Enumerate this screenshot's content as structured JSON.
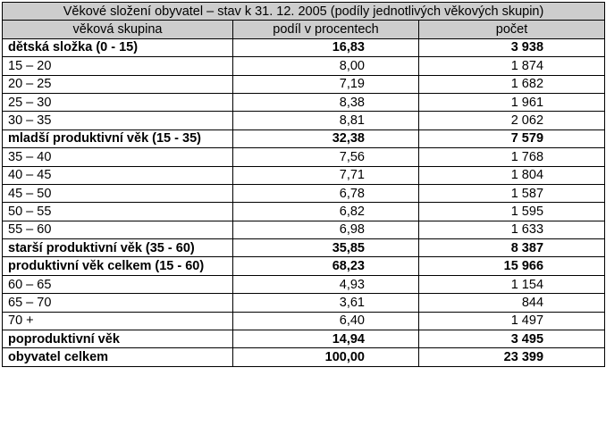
{
  "title": "Věkové složení obyvatel – stav k 31. 12. 2005 (podíly jednotlivých věkových skupin)",
  "headers": [
    "věková skupina",
    "podíl v procentech",
    "počet"
  ],
  "rows": [
    {
      "group": "dětská složka (0 - 15)",
      "percent": "16,83",
      "count": "3 938",
      "bold": true
    },
    {
      "group": "15 – 20",
      "percent": "8,00",
      "count": "1 874",
      "bold": false
    },
    {
      "group": "20 – 25",
      "percent": "7,19",
      "count": "1 682",
      "bold": false
    },
    {
      "group": "25 – 30",
      "percent": "8,38",
      "count": "1 961",
      "bold": false
    },
    {
      "group": "30 – 35",
      "percent": "8,81",
      "count": "2 062",
      "bold": false
    },
    {
      "group": "mladší produktivní věk (15 - 35)",
      "percent": "32,38",
      "count": "7 579",
      "bold": true
    },
    {
      "group": "35 – 40",
      "percent": "7,56",
      "count": "1 768",
      "bold": false
    },
    {
      "group": "40 – 45",
      "percent": "7,71",
      "count": "1 804",
      "bold": false
    },
    {
      "group": "45 – 50",
      "percent": "6,78",
      "count": "1 587",
      "bold": false
    },
    {
      "group": "50 – 55",
      "percent": "6,82",
      "count": "1 595",
      "bold": false
    },
    {
      "group": "55 – 60",
      "percent": "6,98",
      "count": "1 633",
      "bold": false
    },
    {
      "group": "starší produktivní věk (35 - 60)",
      "percent": "35,85",
      "count": "8 387",
      "bold": true
    },
    {
      "group": "produktivní věk celkem (15 - 60)",
      "percent": "68,23",
      "count": "15 966",
      "bold": true
    },
    {
      "group": "60 – 65",
      "percent": "4,93",
      "count": "1 154",
      "bold": false
    },
    {
      "group": "65 – 70",
      "percent": "3,61",
      "count": "844",
      "bold": false
    },
    {
      "group": "70 +",
      "percent": "6,40",
      "count": "1 497",
      "bold": false
    },
    {
      "group": "poproduktivní věk",
      "percent": "14,94",
      "count": "3 495",
      "bold": true
    },
    {
      "group": "obyvatel celkem",
      "percent": "100,00",
      "count": "23 399",
      "bold": true
    }
  ]
}
